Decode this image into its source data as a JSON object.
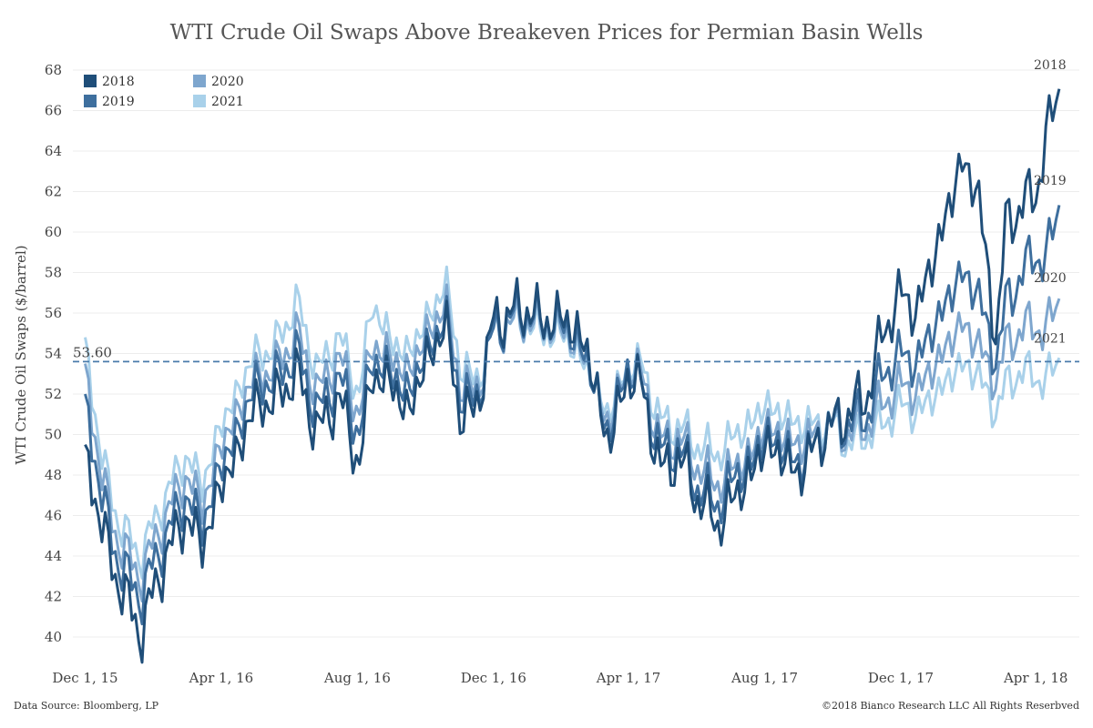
{
  "chart_data": {
    "type": "line",
    "title": "WTI Crude Oil Swaps Above Breakeven Prices for Permian Basin Wells",
    "ylabel": "WTI Crude Oil Swaps ($/barrel)",
    "xlabel": "",
    "ylim": [
      40,
      68
    ],
    "yticks": [
      40,
      42,
      44,
      46,
      48,
      50,
      52,
      54,
      56,
      58,
      60,
      62,
      64,
      66,
      68
    ],
    "xlim": [
      "2015-11-20",
      "2018-05-10"
    ],
    "xticks": [
      {
        "date": "2015-12-01",
        "label": "Dec 1, 15"
      },
      {
        "date": "2016-04-01",
        "label": "Apr 1, 16"
      },
      {
        "date": "2016-08-01",
        "label": "Aug 1, 16"
      },
      {
        "date": "2016-12-01",
        "label": "Dec 1, 16"
      },
      {
        "date": "2017-04-01",
        "label": "Apr 1, 17"
      },
      {
        "date": "2017-08-01",
        "label": "Aug 1, 17"
      },
      {
        "date": "2017-12-01",
        "label": "Dec 1, 17"
      },
      {
        "date": "2018-04-01",
        "label": "Apr 1, 18"
      }
    ],
    "grid": true,
    "legend_position": "top-left",
    "reference_line": {
      "value": 53.6,
      "label": "53.60",
      "color": "#4a7bab",
      "style": "dashed"
    },
    "x": [
      "2015-12-01",
      "2015-12-15",
      "2016-01-01",
      "2016-01-20",
      "2016-02-11",
      "2016-03-01",
      "2016-03-15",
      "2016-04-01",
      "2016-04-15",
      "2016-05-01",
      "2016-05-15",
      "2016-06-08",
      "2016-06-27",
      "2016-07-15",
      "2016-08-02",
      "2016-08-15",
      "2016-09-01",
      "2016-09-15",
      "2016-10-01",
      "2016-10-19",
      "2016-11-01",
      "2016-11-14",
      "2016-12-01",
      "2016-12-15",
      "2017-01-01",
      "2017-01-15",
      "2017-02-01",
      "2017-02-21",
      "2017-03-14",
      "2017-04-01",
      "2017-04-12",
      "2017-05-01",
      "2017-05-15",
      "2017-06-01",
      "2017-06-21",
      "2017-07-05",
      "2017-07-20",
      "2017-08-01",
      "2017-08-15",
      "2017-09-01",
      "2017-09-15",
      "2017-10-01",
      "2017-10-15",
      "2017-11-01",
      "2017-11-15",
      "2017-12-01",
      "2017-12-15",
      "2018-01-01",
      "2018-01-25",
      "2018-02-08",
      "2018-02-25",
      "2018-03-05",
      "2018-03-15",
      "2018-04-01",
      "2018-04-10",
      "2018-04-24"
    ],
    "series": [
      {
        "name": "2018",
        "color": "#1f4e79",
        "end_label": "2018",
        "values": [
          49.5,
          45.5,
          42.5,
          40.2,
          44.0,
          46.0,
          44.5,
          47.5,
          49.0,
          51.5,
          51.5,
          53.0,
          50.0,
          52.0,
          48.5,
          53.0,
          52.5,
          51.0,
          53.5,
          55.5,
          51.0,
          51.0,
          55.5,
          56.0,
          56.2,
          55.5,
          55.8,
          54.5,
          49.5,
          53.0,
          52.5,
          48.0,
          49.0,
          47.0,
          45.5,
          47.0,
          48.0,
          49.5,
          49.0,
          48.0,
          49.5,
          50.5,
          51.0,
          52.0,
          55.0,
          57.0,
          56.0,
          59.0,
          63.5,
          62.0,
          54.5,
          60.5,
          61.0,
          62.0,
          64.5,
          67.5
        ]
      },
      {
        "name": "2019",
        "color": "#3e6f9e",
        "end_label": "2019",
        "values": [
          52.0,
          47.0,
          43.5,
          42.0,
          45.0,
          47.0,
          45.5,
          48.5,
          50.0,
          52.5,
          52.5,
          54.0,
          51.0,
          53.0,
          50.0,
          53.8,
          53.0,
          52.0,
          54.0,
          55.8,
          52.0,
          51.5,
          55.0,
          55.8,
          56.0,
          55.5,
          55.5,
          54.0,
          50.0,
          53.5,
          52.5,
          49.0,
          49.5,
          47.5,
          46.5,
          48.0,
          48.5,
          50.0,
          49.5,
          48.5,
          49.5,
          50.5,
          50.5,
          51.0,
          53.0,
          54.0,
          53.5,
          55.5,
          58.0,
          57.0,
          53.5,
          56.5,
          57.5,
          59.0,
          58.5,
          61.8
        ]
      },
      {
        "name": "2020",
        "color": "#7ea6ce",
        "end_label": "2020",
        "values": [
          53.5,
          48.0,
          44.5,
          43.0,
          46.0,
          48.0,
          46.5,
          49.5,
          51.0,
          53.0,
          53.0,
          55.0,
          52.0,
          54.0,
          51.0,
          54.5,
          53.8,
          53.0,
          54.8,
          56.5,
          52.5,
          52.0,
          55.0,
          55.5,
          55.7,
          55.3,
          55.2,
          53.8,
          50.5,
          53.5,
          53.0,
          49.5,
          50.0,
          48.5,
          47.5,
          48.5,
          49.0,
          50.5,
          50.0,
          49.5,
          50.0,
          50.5,
          50.0,
          50.5,
          51.5,
          52.5,
          52.0,
          53.5,
          55.5,
          54.5,
          52.5,
          54.5,
          55.0,
          55.5,
          55.0,
          57.0
        ]
      },
      {
        "name": "2021",
        "color": "#a9d1ea",
        "end_label": "2021",
        "values": [
          54.8,
          49.0,
          45.5,
          44.0,
          47.0,
          49.0,
          47.5,
          50.5,
          52.0,
          54.0,
          54.0,
          56.5,
          53.0,
          55.0,
          52.0,
          56.5,
          54.5,
          54.0,
          55.5,
          57.5,
          53.5,
          52.5,
          55.0,
          55.5,
          55.5,
          55.0,
          55.0,
          53.5,
          51.0,
          53.5,
          53.5,
          50.5,
          50.5,
          49.5,
          49.0,
          50.0,
          50.5,
          51.5,
          51.0,
          50.5,
          50.5,
          50.5,
          49.5,
          50.0,
          50.5,
          51.5,
          51.0,
          52.0,
          53.5,
          53.0,
          51.0,
          52.5,
          53.0,
          53.0,
          52.5,
          54.0
        ]
      }
    ],
    "source": "Data Source: Bloomberg, LP",
    "copyright": "©2018 Bianco Research LLC  All Rights Reserbved"
  }
}
